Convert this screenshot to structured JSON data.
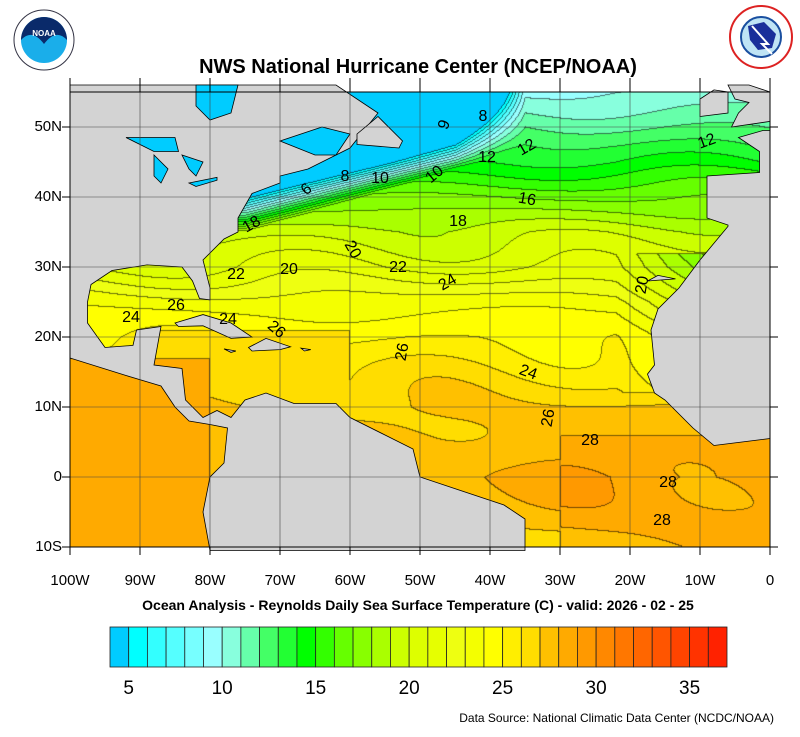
{
  "header": {
    "title": "NWS National Hurricane Center (NCEP/NOAA)",
    "logo_left": "NOAA",
    "logo_right": "NATIONAL WEATHER SERVICE"
  },
  "map": {
    "lat_labels": [
      "50N",
      "40N",
      "30N",
      "20N",
      "10N",
      "0",
      "10S"
    ],
    "lon_labels": [
      "100W",
      "90W",
      "80W",
      "70W",
      "60W",
      "50W",
      "40W",
      "30W",
      "20W",
      "10W",
      "0"
    ],
    "extent": {
      "lon": [
        -100,
        0
      ],
      "lat": [
        -10,
        55
      ]
    },
    "land_color": "#d3d3d3",
    "contour_labels": [
      "8",
      "9",
      "12",
      "12",
      "12",
      "6",
      "8",
      "10",
      "10",
      "16",
      "18",
      "18",
      "20",
      "22",
      "20",
      "22",
      "24",
      "20",
      "26",
      "24",
      "24",
      "26",
      "26",
      "24",
      "26",
      "28",
      "28",
      "28"
    ]
  },
  "subtitle": "Ocean Analysis - Reynolds Daily Sea Surface Temperature (C) - valid: 2026 - 02 - 25",
  "colorbar": {
    "labels": [
      "5",
      "10",
      "15",
      "20",
      "25",
      "30",
      "35"
    ],
    "colors": [
      "#00ccff",
      "#00ffff",
      "#33ffff",
      "#55ffff",
      "#77ffff",
      "#99ffff",
      "#88ffdd",
      "#66ffaa",
      "#44ff66",
      "#22ff33",
      "#00ff00",
      "#33ff00",
      "#66ff00",
      "#88ff00",
      "#aaff00",
      "#ccff00",
      "#ddff00",
      "#e6ff00",
      "#eeff11",
      "#f4ff00",
      "#ffff00",
      "#ffee00",
      "#ffdd00",
      "#ffc000",
      "#ffaa00",
      "#ff9900",
      "#ff8800",
      "#ff7700",
      "#ff6600",
      "#ff5500",
      "#ff4400",
      "#ff3300",
      "#ff2200"
    ]
  },
  "footer": {
    "source": "Data Source: National Climatic Data Center (NCDC/NOAA)"
  }
}
